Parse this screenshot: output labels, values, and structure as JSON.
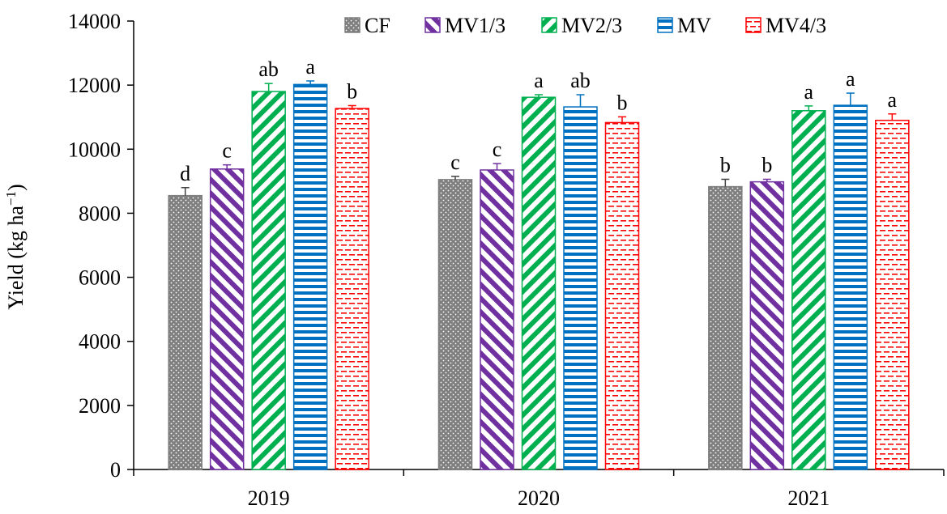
{
  "chart_data": {
    "type": "bar",
    "title": "",
    "xlabel": "",
    "ylabel": "Yield (kg ha",
    "ylabel_sup": "−1",
    "ylabel_close": ")",
    "ylim": [
      0,
      14000
    ],
    "yticks": [
      0,
      2000,
      4000,
      6000,
      8000,
      10000,
      12000,
      14000
    ],
    "ytick_labels": [
      "0",
      "2000",
      "4000",
      "6000",
      "8000",
      "10000",
      "12000",
      "14000"
    ],
    "grid": false,
    "legend_position": "top",
    "categories": [
      "2019",
      "2020",
      "2021"
    ],
    "series": [
      {
        "name": "CF",
        "color": "#7f7f7f",
        "pattern": "dots",
        "values": [
          8550,
          9050,
          8830
        ],
        "errors": [
          250,
          100,
          230
        ],
        "letters": [
          "d",
          "c",
          "b"
        ]
      },
      {
        "name": "MV1/3",
        "color": "#7030a0",
        "pattern": "diagonal-down",
        "values": [
          9380,
          9350,
          8980
        ],
        "errors": [
          130,
          200,
          80
        ],
        "letters": [
          "c",
          "c",
          "b"
        ]
      },
      {
        "name": "MV2/3",
        "color": "#00b050",
        "pattern": "diagonal-up",
        "values": [
          11800,
          11620,
          11200
        ],
        "errors": [
          250,
          80,
          150
        ],
        "letters": [
          "ab",
          "a",
          "a"
        ]
      },
      {
        "name": "MV",
        "color": "#0070c0",
        "pattern": "horizontal",
        "values": [
          12020,
          11320,
          11370
        ],
        "errors": [
          110,
          380,
          380
        ],
        "letters": [
          "a",
          "ab",
          "a"
        ]
      },
      {
        "name": "MV4/3",
        "color": "#ff0000",
        "pattern": "dashes",
        "values": [
          11270,
          10830,
          10900
        ],
        "errors": [
          90,
          180,
          200
        ],
        "letters": [
          "b",
          "b",
          "a"
        ]
      }
    ]
  }
}
